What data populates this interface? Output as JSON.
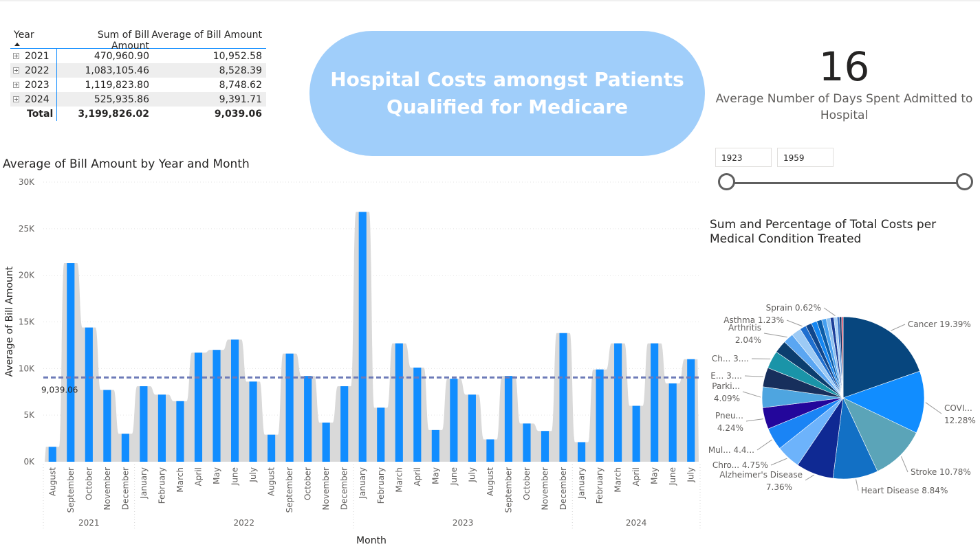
{
  "matrix": {
    "headers": [
      "Year",
      "Sum of Bill Amount",
      "Average of Bill Amount"
    ],
    "rows": [
      {
        "year": "2021",
        "sum": "470,960.90",
        "avg": "10,952.58"
      },
      {
        "year": "2022",
        "sum": "1,083,105.46",
        "avg": "8,528.39"
      },
      {
        "year": "2023",
        "sum": "1,119,823.80",
        "avg": "8,748.62"
      },
      {
        "year": "2024",
        "sum": "525,935.86",
        "avg": "9,391.71"
      }
    ],
    "total": {
      "label": "Total",
      "sum": "3,199,826.02",
      "avg": "9,039.06"
    }
  },
  "title": {
    "line1": "Hospital Costs amongst Patients",
    "line2": "Qualified for Medicare"
  },
  "kpi": {
    "value": "16",
    "label_line1": "Average Number of Days Spent Admitted to",
    "label_line2": "Hospital"
  },
  "slicer": {
    "min_value": "1923",
    "max_value": "1959"
  },
  "colors": {
    "bar": "#118dff",
    "area": "#d9d9d9",
    "avgline": "#6d7bb8",
    "pill": "#a0cefa"
  },
  "chart_data": [
    {
      "type": "bar",
      "title": "Average of Bill Amount by Year and Month",
      "xlabel": "Month",
      "ylabel": "Average of Bill Amount",
      "ylim": [
        0,
        30000
      ],
      "yticks": [
        "0K",
        "5K",
        "10K",
        "15K",
        "20K",
        "25K",
        "30K"
      ],
      "average_line": {
        "value": 9039.06,
        "label": "9,039.06"
      },
      "groups": [
        {
          "year": "2021",
          "months": [
            "August",
            "September",
            "October",
            "November",
            "December"
          ],
          "values": [
            1600,
            21300,
            14400,
            7700,
            3000
          ]
        },
        {
          "year": "2022",
          "months": [
            "January",
            "February",
            "March",
            "April",
            "May",
            "June",
            "July",
            "August",
            "September",
            "October",
            "November",
            "December"
          ],
          "values": [
            8100,
            7200,
            6500,
            11700,
            12000,
            13100,
            8600,
            2900,
            11600,
            9200,
            4200,
            8100
          ]
        },
        {
          "year": "2023",
          "months": [
            "January",
            "February",
            "March",
            "April",
            "May",
            "June",
            "July",
            "August",
            "September",
            "October",
            "November",
            "December"
          ],
          "values": [
            26800,
            5800,
            12700,
            10100,
            3400,
            8900,
            7200,
            2400,
            9200,
            4100,
            3300,
            13800
          ]
        },
        {
          "year": "2024",
          "months": [
            "January",
            "February",
            "March",
            "April",
            "May",
            "June",
            "July"
          ],
          "values": [
            2100,
            9900,
            12700,
            6000,
            12700,
            8400,
            11000
          ]
        }
      ]
    },
    {
      "type": "pie",
      "title_line1": "Sum and Percentage of Total Costs per",
      "title_line2": "Medical Condition Treated",
      "slices": [
        {
          "label": "Cancer 19.39%",
          "value": 19.39,
          "color": "#07467e"
        },
        {
          "label": "COVI... 12.28%",
          "value": 12.28,
          "color": "#118dff"
        },
        {
          "label": "Stroke 10.78%",
          "value": 10.78,
          "color": "#5ba4b8"
        },
        {
          "label": "Heart Disease 8.84%",
          "value": 8.84,
          "color": "#1270c5"
        },
        {
          "label": "Alzheimer's Disease 7.36%",
          "value": 7.36,
          "color": "#0f2993"
        },
        {
          "label": "Chro... 4.75%",
          "value": 4.75,
          "color": "#6db3fb"
        },
        {
          "label": "Mul... 4.4...",
          "value": 4.4,
          "color": "#1a84f5"
        },
        {
          "label": "Pneu... 4.24%",
          "value": 4.24,
          "color": "#23069b"
        },
        {
          "label": "Parki... 4.09%",
          "value": 4.09,
          "color": "#4ea5e0"
        },
        {
          "label": "E... 3....",
          "value": 3.8,
          "color": "#172f5c"
        },
        {
          "label": "Ch... 3....",
          "value": 3.5,
          "color": "#1a94a8"
        },
        {
          "label": "",
          "value": 2.5,
          "color": "#0c3e6e"
        },
        {
          "label": "Arthritis 2.04%",
          "value": 2.04,
          "color": "#5aa6f2"
        },
        {
          "label": "",
          "value": 1.9,
          "color": "#9ccaf5"
        },
        {
          "label": "Asthma 1.23%",
          "value": 1.23,
          "color": "#1e6fd0"
        },
        {
          "label": "",
          "value": 1.2,
          "color": "#10468c"
        },
        {
          "label": "",
          "value": 1.1,
          "color": "#1587f2"
        },
        {
          "label": "",
          "value": 1.0,
          "color": "#0b5ca8"
        },
        {
          "label": "",
          "value": 0.9,
          "color": "#46a0f0"
        },
        {
          "label": "",
          "value": 0.8,
          "color": "#8ec1ef"
        },
        {
          "label": "",
          "value": 0.7,
          "color": "#1c3f9a"
        },
        {
          "label": "Sprain 0.62%",
          "value": 0.62,
          "color": "#a8d1f7"
        },
        {
          "label": "",
          "value": 0.5,
          "color": "#3a76c9"
        },
        {
          "label": "",
          "value": 0.4,
          "color": "#0a2a5c"
        },
        {
          "label": "",
          "value": 0.3,
          "color": "#e0435e"
        }
      ]
    }
  ]
}
